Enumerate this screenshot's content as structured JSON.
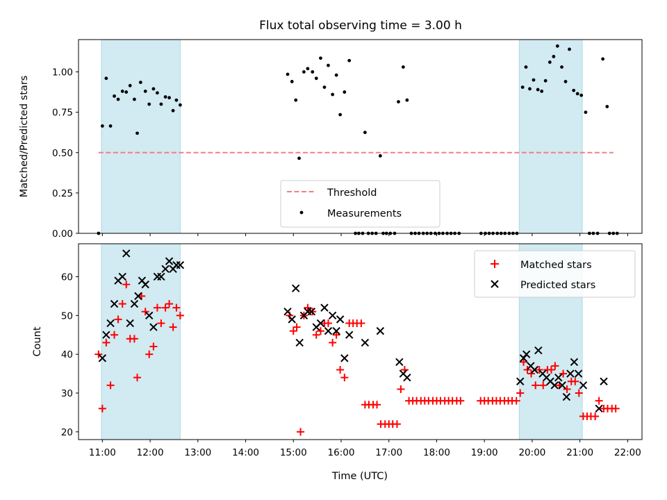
{
  "title": "Flux total observing time = 3.00 h",
  "colors": {
    "threshold": "#f08080",
    "measurements": "#000000",
    "matched": "#ff0000",
    "predicted": "#000000",
    "shade": "#add8e6"
  },
  "chart_data": [
    {
      "type": "scatter",
      "panel": "top",
      "ylabel": "Matched/Predicted stars",
      "ylim": [
        0,
        1.2
      ],
      "yticks": [
        0.0,
        0.25,
        0.5,
        0.75,
        1.0
      ],
      "ytick_labels": [
        "0.00",
        "0.25",
        "0.50",
        "0.75",
        "1.00"
      ],
      "legend_position": "lower center",
      "legend": [
        {
          "label": "Threshold",
          "marker": "dashed-line"
        },
        {
          "label": "Measurements",
          "marker": "dot"
        }
      ],
      "shaded_spans_hours": [
        [
          10.98,
          12.63
        ],
        [
          19.73,
          21.05
        ]
      ],
      "threshold": {
        "y": 0.5,
        "x_start": 10.92,
        "x_end": 21.7
      },
      "points": [
        [
          10.92,
          0.0
        ],
        [
          11.0,
          0.665
        ],
        [
          11.08,
          0.96
        ],
        [
          11.17,
          0.665
        ],
        [
          11.25,
          0.85
        ],
        [
          11.33,
          0.83
        ],
        [
          11.42,
          0.88
        ],
        [
          11.5,
          0.875
        ],
        [
          11.58,
          0.915
        ],
        [
          11.67,
          0.83
        ],
        [
          11.73,
          0.62
        ],
        [
          11.8,
          0.935
        ],
        [
          11.9,
          0.88
        ],
        [
          11.98,
          0.8
        ],
        [
          12.07,
          0.895
        ],
        [
          12.15,
          0.87
        ],
        [
          12.23,
          0.8
        ],
        [
          12.32,
          0.845
        ],
        [
          12.4,
          0.84
        ],
        [
          12.48,
          0.76
        ],
        [
          12.55,
          0.825
        ],
        [
          12.63,
          0.795
        ],
        [
          14.88,
          0.985
        ],
        [
          14.97,
          0.94
        ],
        [
          15.05,
          0.825
        ],
        [
          15.12,
          0.465
        ],
        [
          15.22,
          1.0
        ],
        [
          15.3,
          1.02
        ],
        [
          15.4,
          1.0
        ],
        [
          15.48,
          0.96
        ],
        [
          15.57,
          1.085
        ],
        [
          15.65,
          0.905
        ],
        [
          15.73,
          1.04
        ],
        [
          15.82,
          0.86
        ],
        [
          15.9,
          0.98
        ],
        [
          15.98,
          0.735
        ],
        [
          16.07,
          0.875
        ],
        [
          16.17,
          1.07
        ],
        [
          16.5,
          0.625
        ],
        [
          16.82,
          0.48
        ],
        [
          17.2,
          0.815
        ],
        [
          17.3,
          1.03
        ],
        [
          17.38,
          0.825
        ],
        [
          19.8,
          0.905
        ],
        [
          19.87,
          1.03
        ],
        [
          19.95,
          0.895
        ],
        [
          20.03,
          0.95
        ],
        [
          20.12,
          0.89
        ],
        [
          20.2,
          0.88
        ],
        [
          20.28,
          0.945
        ],
        [
          20.37,
          1.06
        ],
        [
          20.45,
          1.095
        ],
        [
          20.53,
          1.16
        ],
        [
          20.62,
          1.03
        ],
        [
          20.7,
          0.94
        ],
        [
          20.78,
          1.14
        ],
        [
          20.87,
          0.885
        ],
        [
          20.95,
          0.865
        ],
        [
          21.03,
          0.855
        ],
        [
          21.12,
          0.75
        ],
        [
          21.48,
          1.08
        ],
        [
          21.57,
          0.785
        ],
        [
          16.3,
          0.0
        ],
        [
          16.37,
          0.0
        ],
        [
          16.45,
          0.0
        ],
        [
          16.57,
          0.0
        ],
        [
          16.65,
          0.0
        ],
        [
          16.73,
          0.0
        ],
        [
          16.88,
          0.0
        ],
        [
          16.95,
          0.0
        ],
        [
          17.03,
          0.0
        ],
        [
          17.12,
          0.0
        ],
        [
          17.47,
          0.0
        ],
        [
          17.55,
          0.0
        ],
        [
          17.63,
          0.0
        ],
        [
          17.72,
          0.0
        ],
        [
          17.8,
          0.0
        ],
        [
          17.88,
          0.0
        ],
        [
          17.97,
          0.0
        ],
        [
          18.05,
          0.0
        ],
        [
          18.13,
          0.0
        ],
        [
          18.22,
          0.0
        ],
        [
          18.3,
          0.0
        ],
        [
          18.38,
          0.0
        ],
        [
          18.47,
          0.0
        ],
        [
          18.93,
          0.0
        ],
        [
          19.02,
          0.0
        ],
        [
          19.1,
          0.0
        ],
        [
          19.18,
          0.0
        ],
        [
          19.27,
          0.0
        ],
        [
          19.35,
          0.0
        ],
        [
          19.43,
          0.0
        ],
        [
          19.52,
          0.0
        ],
        [
          19.6,
          0.0
        ],
        [
          19.68,
          0.0
        ],
        [
          21.2,
          0.0
        ],
        [
          21.28,
          0.0
        ],
        [
          21.37,
          0.0
        ],
        [
          21.62,
          0.0
        ],
        [
          21.7,
          0.0
        ],
        [
          21.78,
          0.0
        ]
      ]
    },
    {
      "type": "scatter",
      "panel": "bottom",
      "xlabel": "Time (UTC)",
      "ylabel": "Count",
      "xlim": [
        10.5,
        22.3
      ],
      "ylim": [
        18,
        68.5
      ],
      "xticks": [
        11,
        12,
        13,
        14,
        15,
        16,
        17,
        18,
        19,
        20,
        21,
        22
      ],
      "xtick_labels": [
        "11:00",
        "12:00",
        "13:00",
        "14:00",
        "15:00",
        "16:00",
        "17:00",
        "18:00",
        "19:00",
        "20:00",
        "21:00",
        "22:00"
      ],
      "yticks": [
        20,
        30,
        40,
        50,
        60
      ],
      "ytick_labels": [
        "20",
        "30",
        "40",
        "50",
        "60"
      ],
      "legend_position": "upper right",
      "shaded_spans_hours": [
        [
          10.98,
          12.63
        ],
        [
          19.73,
          21.05
        ]
      ],
      "series": [
        {
          "name": "Matched stars",
          "marker": "+",
          "points": [
            [
              10.92,
              40
            ],
            [
              11.0,
              26
            ],
            [
              11.08,
              43
            ],
            [
              11.17,
              32
            ],
            [
              11.25,
              45
            ],
            [
              11.33,
              49
            ],
            [
              11.42,
              53
            ],
            [
              11.5,
              58
            ],
            [
              11.58,
              44
            ],
            [
              11.67,
              44
            ],
            [
              11.73,
              34
            ],
            [
              11.82,
              55
            ],
            [
              11.9,
              51
            ],
            [
              11.98,
              40
            ],
            [
              12.07,
              42
            ],
            [
              12.15,
              52
            ],
            [
              12.23,
              48
            ],
            [
              12.32,
              52
            ],
            [
              12.4,
              53
            ],
            [
              12.48,
              47
            ],
            [
              12.55,
              52
            ],
            [
              12.63,
              50
            ],
            [
              14.92,
              50
            ],
            [
              15.0,
              46
            ],
            [
              15.07,
              47
            ],
            [
              15.15,
              20
            ],
            [
              15.22,
              50
            ],
            [
              15.3,
              52
            ],
            [
              15.4,
              51
            ],
            [
              15.48,
              45
            ],
            [
              15.57,
              46
            ],
            [
              15.65,
              48
            ],
            [
              15.73,
              48
            ],
            [
              15.82,
              43
            ],
            [
              15.9,
              45
            ],
            [
              15.98,
              36
            ],
            [
              16.07,
              34
            ],
            [
              16.17,
              48
            ],
            [
              16.25,
              48
            ],
            [
              16.33,
              48
            ],
            [
              16.42,
              48
            ],
            [
              16.5,
              27
            ],
            [
              16.58,
              27
            ],
            [
              16.67,
              27
            ],
            [
              16.75,
              27
            ],
            [
              16.83,
              22
            ],
            [
              16.92,
              22
            ],
            [
              17.0,
              22
            ],
            [
              17.08,
              22
            ],
            [
              17.17,
              22
            ],
            [
              17.25,
              31
            ],
            [
              17.33,
              36
            ],
            [
              17.42,
              28
            ],
            [
              17.5,
              28
            ],
            [
              17.58,
              28
            ],
            [
              17.67,
              28
            ],
            [
              17.75,
              28
            ],
            [
              17.83,
              28
            ],
            [
              17.92,
              28
            ],
            [
              18.0,
              28
            ],
            [
              18.08,
              28
            ],
            [
              18.17,
              28
            ],
            [
              18.25,
              28
            ],
            [
              18.33,
              28
            ],
            [
              18.42,
              28
            ],
            [
              18.5,
              28
            ],
            [
              18.92,
              28
            ],
            [
              19.0,
              28
            ],
            [
              19.08,
              28
            ],
            [
              19.17,
              28
            ],
            [
              19.25,
              28
            ],
            [
              19.33,
              28
            ],
            [
              19.42,
              28
            ],
            [
              19.5,
              28
            ],
            [
              19.58,
              28
            ],
            [
              19.67,
              28
            ],
            [
              19.75,
              30
            ],
            [
              19.82,
              38
            ],
            [
              19.9,
              36
            ],
            [
              19.98,
              35
            ],
            [
              20.07,
              32
            ],
            [
              20.15,
              36
            ],
            [
              20.23,
              32
            ],
            [
              20.32,
              36
            ],
            [
              20.4,
              36
            ],
            [
              20.48,
              37
            ],
            [
              20.57,
              32
            ],
            [
              20.65,
              35
            ],
            [
              20.73,
              31
            ],
            [
              20.82,
              33
            ],
            [
              20.9,
              33
            ],
            [
              20.98,
              30
            ],
            [
              21.07,
              24
            ],
            [
              21.15,
              24
            ],
            [
              21.23,
              24
            ],
            [
              21.32,
              24
            ],
            [
              21.4,
              28
            ],
            [
              21.5,
              26
            ],
            [
              21.58,
              26
            ],
            [
              21.67,
              26
            ],
            [
              21.75,
              26
            ]
          ]
        },
        {
          "name": "Predicted stars",
          "marker": "x",
          "points": [
            [
              11.0,
              39
            ],
            [
              11.08,
              45
            ],
            [
              11.17,
              48
            ],
            [
              11.25,
              53
            ],
            [
              11.33,
              59
            ],
            [
              11.42,
              60
            ],
            [
              11.5,
              66
            ],
            [
              11.58,
              48
            ],
            [
              11.67,
              53
            ],
            [
              11.75,
              55
            ],
            [
              11.83,
              59
            ],
            [
              11.9,
              58
            ],
            [
              11.98,
              50
            ],
            [
              12.07,
              47
            ],
            [
              12.15,
              60
            ],
            [
              12.23,
              60
            ],
            [
              12.32,
              62
            ],
            [
              12.4,
              64
            ],
            [
              12.48,
              62
            ],
            [
              12.55,
              63
            ],
            [
              12.63,
              63
            ],
            [
              14.88,
              51
            ],
            [
              14.97,
              49
            ],
            [
              15.05,
              57
            ],
            [
              15.13,
              43
            ],
            [
              15.22,
              50
            ],
            [
              15.3,
              51
            ],
            [
              15.38,
              51
            ],
            [
              15.48,
              47
            ],
            [
              15.57,
              48
            ],
            [
              15.65,
              52
            ],
            [
              15.73,
              46
            ],
            [
              15.82,
              50
            ],
            [
              15.9,
              46
            ],
            [
              15.98,
              49
            ],
            [
              16.07,
              39
            ],
            [
              16.17,
              45
            ],
            [
              16.5,
              43
            ],
            [
              16.82,
              46
            ],
            [
              17.22,
              38
            ],
            [
              17.3,
              35
            ],
            [
              17.38,
              34
            ],
            [
              19.75,
              33
            ],
            [
              19.82,
              39
            ],
            [
              19.88,
              40
            ],
            [
              19.97,
              37
            ],
            [
              20.05,
              36
            ],
            [
              20.13,
              41
            ],
            [
              20.22,
              35
            ],
            [
              20.3,
              34
            ],
            [
              20.38,
              33
            ],
            [
              20.47,
              32
            ],
            [
              20.55,
              34
            ],
            [
              20.63,
              32
            ],
            [
              20.72,
              29
            ],
            [
              20.8,
              35
            ],
            [
              20.88,
              38
            ],
            [
              20.97,
              35
            ],
            [
              21.07,
              32
            ],
            [
              21.4,
              26
            ],
            [
              21.5,
              33
            ]
          ]
        }
      ]
    }
  ]
}
